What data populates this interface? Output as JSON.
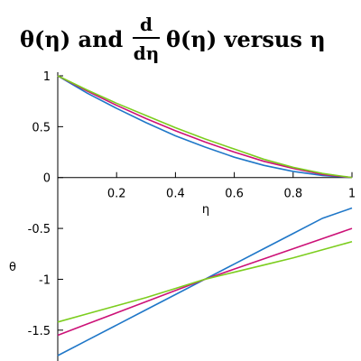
{
  "title": {
    "prefix": "θ(η) and",
    "frac_numerator": "d",
    "frac_denominator": "dη",
    "suffix": "θ(η) versus η"
  },
  "chart_data": {
    "type": "line",
    "xlabel": "η",
    "ylabel": "θ",
    "xlim": [
      0,
      1
    ],
    "ylim": [
      -1.75,
      1
    ],
    "x_ticks": [
      0.2,
      0.4,
      0.6,
      0.8,
      1
    ],
    "x_tick_labels": [
      "0.2",
      "0.4",
      "0.6",
      "0.8",
      "1"
    ],
    "y_ticks": [
      1,
      0.5,
      0,
      -0.5,
      -1,
      -1.5
    ],
    "y_tick_labels": [
      "1",
      "0.5",
      "0",
      "-0.5",
      "-1",
      "-1.5"
    ],
    "grid": false,
    "legend": "none",
    "x": [
      0,
      0.1,
      0.2,
      0.3,
      0.4,
      0.5,
      0.6,
      0.7,
      0.8,
      0.9,
      1
    ],
    "series": [
      {
        "color": "#1f77c8",
        "values": [
          1,
          0.83,
          0.68,
          0.54,
          0.41,
          0.3,
          0.2,
          0.12,
          0.06,
          0.02,
          0
        ]
      },
      {
        "color": "#cc1177",
        "values": [
          1,
          0.85,
          0.71,
          0.58,
          0.46,
          0.35,
          0.25,
          0.16,
          0.09,
          0.03,
          0
        ]
      },
      {
        "color": "#7ccd1e",
        "values": [
          1,
          0.86,
          0.73,
          0.61,
          0.49,
          0.38,
          0.28,
          0.18,
          0.1,
          0.04,
          0
        ]
      },
      {
        "color": "#1f77c8",
        "values": [
          -1.75,
          -1.6,
          -1.45,
          -1.3,
          -1.15,
          -1.0,
          -0.85,
          -0.7,
          -0.55,
          -0.4,
          -0.3
        ]
      },
      {
        "color": "#cc1177",
        "values": [
          -1.55,
          -1.44,
          -1.33,
          -1.22,
          -1.11,
          -1.0,
          -0.9,
          -0.8,
          -0.7,
          -0.6,
          -0.5
        ]
      },
      {
        "color": "#7ccd1e",
        "values": [
          -1.42,
          -1.34,
          -1.26,
          -1.18,
          -1.09,
          -1.0,
          -0.93,
          -0.86,
          -0.79,
          -0.71,
          -0.63
        ]
      }
    ]
  }
}
